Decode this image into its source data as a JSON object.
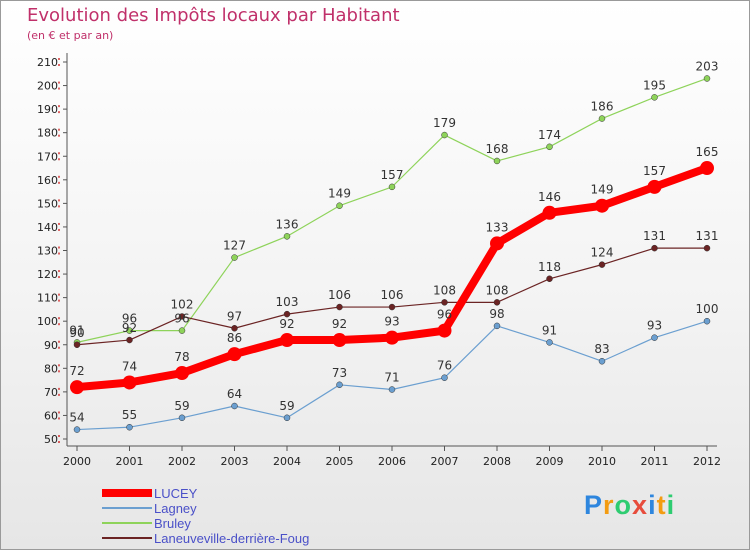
{
  "header": {
    "title": "Evolution des Impôts locaux par Habitant",
    "subtitle": "(en € et par an)"
  },
  "brand": {
    "letters": [
      "P",
      "r",
      "o",
      "x",
      "i",
      "t",
      "i"
    ],
    "colors": [
      "#2e86de",
      "#f39c12",
      "#2ecc71",
      "#e74c3c",
      "#2e86de",
      "#f39c12",
      "#2ecc71"
    ]
  },
  "chart_data": {
    "type": "line",
    "x": [
      2000,
      2001,
      2002,
      2003,
      2004,
      2005,
      2006,
      2007,
      2008,
      2009,
      2010,
      2011,
      2012
    ],
    "ylim": [
      50,
      210
    ],
    "yticks": [
      50,
      60,
      70,
      80,
      90,
      100,
      110,
      120,
      130,
      140,
      150,
      160,
      170,
      180,
      190,
      200,
      210
    ],
    "grid": false,
    "legend": "bottom-left",
    "series": [
      {
        "name": "Lagney",
        "color": "#6b9fd0",
        "values": [
          54,
          55,
          59,
          64,
          59,
          73,
          71,
          76,
          98,
          91,
          83,
          93,
          100
        ]
      },
      {
        "name": "Bruley",
        "color": "#8ed35a",
        "values": [
          91,
          96,
          96,
          127,
          136,
          149,
          157,
          179,
          168,
          174,
          186,
          195,
          203
        ]
      },
      {
        "name": "Laneuveville-derrière-Foug",
        "color": "#6b2424",
        "values": [
          90,
          92,
          102,
          97,
          103,
          106,
          106,
          108,
          108,
          118,
          124,
          131,
          131
        ]
      },
      {
        "name": "LUCEY",
        "color": "#ff0000",
        "highlight": true,
        "values": [
          72,
          74,
          78,
          86,
          92,
          92,
          93,
          96,
          133,
          146,
          149,
          157,
          165
        ]
      }
    ],
    "legend_order": [
      "LUCEY",
      "Lagney",
      "Bruley",
      "Laneuveville-derrière-Foug"
    ]
  }
}
